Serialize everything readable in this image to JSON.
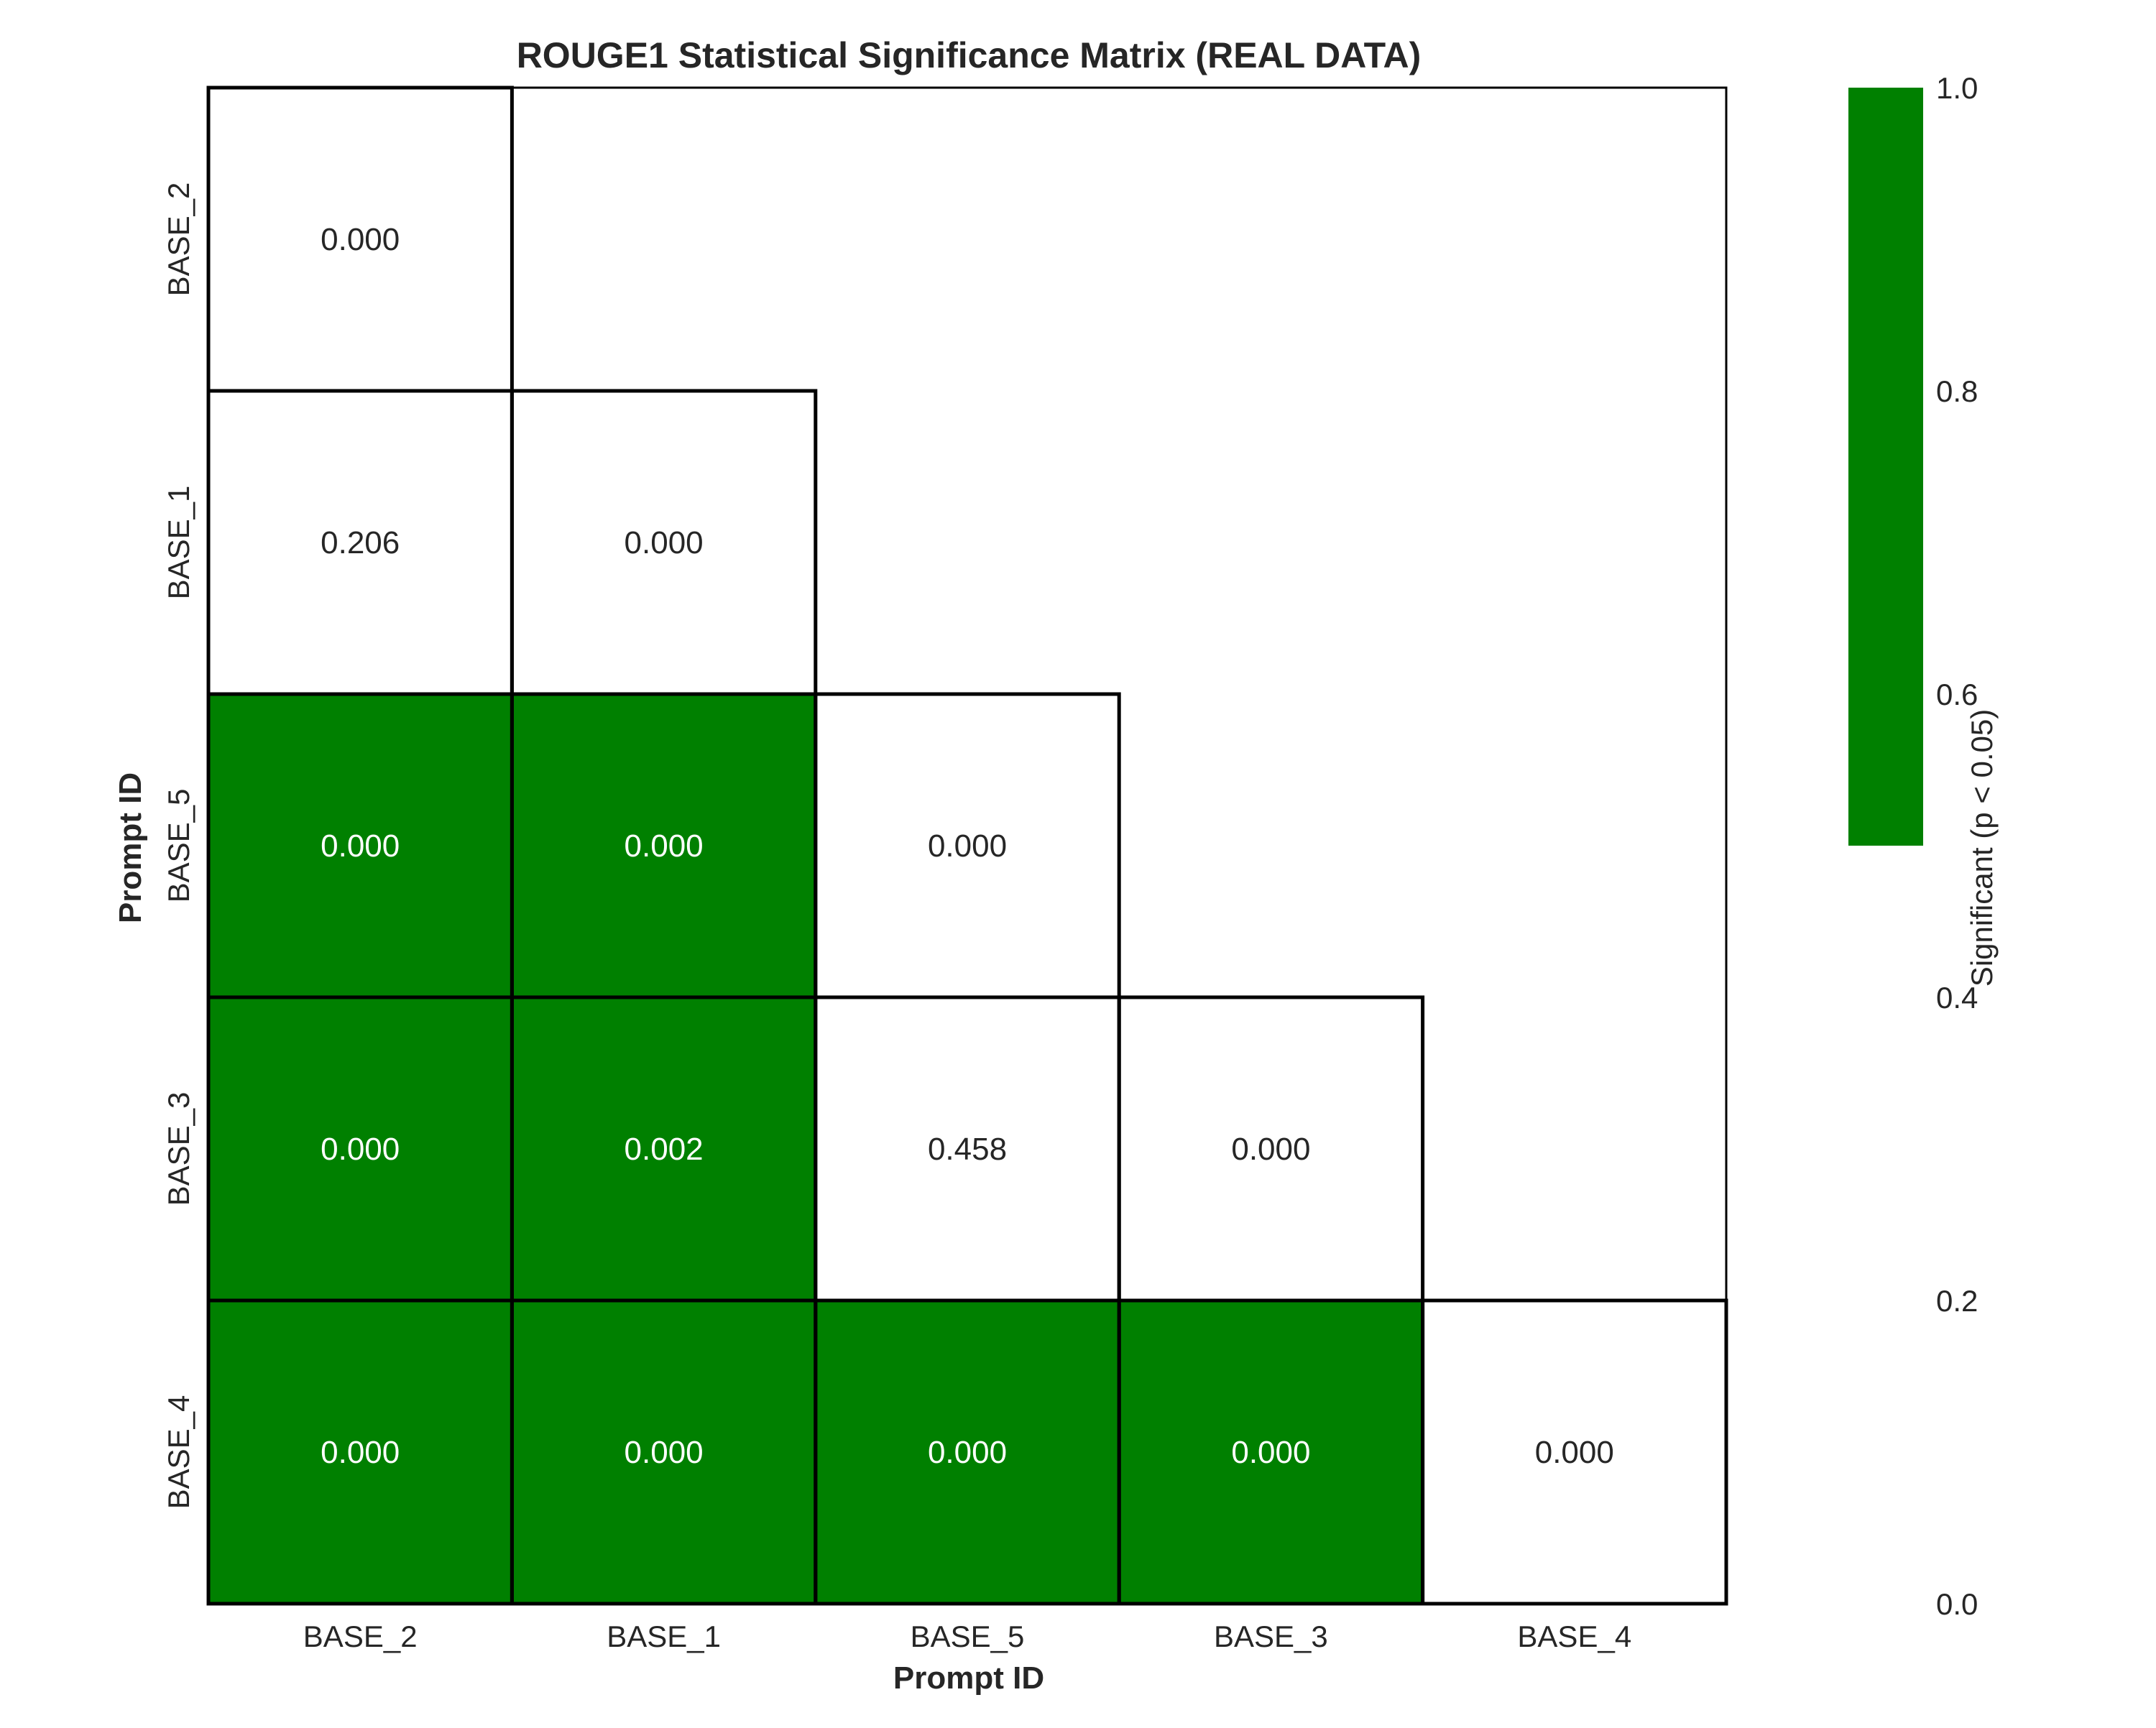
{
  "chart_data": {
    "type": "heatmap",
    "title": "ROUGE1 Statistical Significance Matrix (REAL DATA)",
    "xlabel": "Prompt ID",
    "ylabel": "Prompt ID",
    "x_categories": [
      "BASE_2",
      "BASE_1",
      "BASE_5",
      "BASE_3",
      "BASE_4"
    ],
    "y_categories": [
      "BASE_2",
      "BASE_1",
      "BASE_5",
      "BASE_3",
      "BASE_4"
    ],
    "cells": [
      {
        "row": 0,
        "col": 0,
        "label": "0.000",
        "significant": 0
      },
      {
        "row": 1,
        "col": 0,
        "label": "0.206",
        "significant": 0
      },
      {
        "row": 1,
        "col": 1,
        "label": "0.000",
        "significant": 0
      },
      {
        "row": 2,
        "col": 0,
        "label": "0.000",
        "significant": 1
      },
      {
        "row": 2,
        "col": 1,
        "label": "0.000",
        "significant": 1
      },
      {
        "row": 2,
        "col": 2,
        "label": "0.000",
        "significant": 0
      },
      {
        "row": 3,
        "col": 0,
        "label": "0.000",
        "significant": 1
      },
      {
        "row": 3,
        "col": 1,
        "label": "0.002",
        "significant": 1
      },
      {
        "row": 3,
        "col": 2,
        "label": "0.458",
        "significant": 0
      },
      {
        "row": 3,
        "col": 3,
        "label": "0.000",
        "significant": 0
      },
      {
        "row": 4,
        "col": 0,
        "label": "0.000",
        "significant": 1
      },
      {
        "row": 4,
        "col": 1,
        "label": "0.000",
        "significant": 1
      },
      {
        "row": 4,
        "col": 2,
        "label": "0.000",
        "significant": 1
      },
      {
        "row": 4,
        "col": 3,
        "label": "0.000",
        "significant": 1
      },
      {
        "row": 4,
        "col": 4,
        "label": "0.000",
        "significant": 0
      }
    ],
    "masked": "upper triangle",
    "colorbar": {
      "label": "Significant (p < 0.05)",
      "range": [
        0.0,
        1.0
      ],
      "ticks": [
        "0.0",
        "0.2",
        "0.4",
        "0.6",
        "0.8",
        "1.0"
      ],
      "filled_range": [
        0.5,
        1.0
      ]
    },
    "grid": true,
    "colors": {
      "significant": "#008000",
      "not_significant": "#ffffff",
      "cell_border": "#000000",
      "grid": "#cccccc",
      "text_on_dark": "#ffffff",
      "text_on_light": "#262626"
    }
  }
}
